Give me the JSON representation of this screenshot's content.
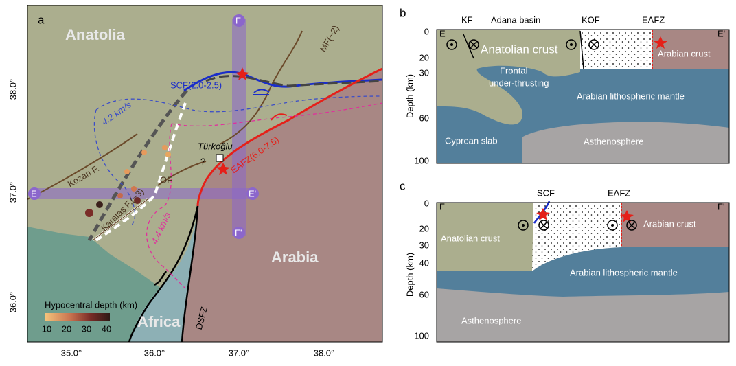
{
  "panel_a": {
    "label": "a",
    "regions": [
      "Anatolia",
      "Arabia",
      "Africa"
    ],
    "faults": {
      "scf": "SCF(2.0-2.5)",
      "eafz": "EAFZ(6.0-7.5)",
      "kozan": "Kozan F.",
      "of": "OF",
      "karatas": "Karataş F.(~3)",
      "mf": "MF(~2)",
      "dsfz": "DSFZ"
    },
    "town": "Türkoğlu",
    "question": "?",
    "velocity": [
      "4.2 km/s",
      "4.4 km/s"
    ],
    "profile_ends": [
      "F",
      "F'",
      "E",
      "E'"
    ],
    "colorbar": {
      "title": "Hypocentral depth (km)",
      "ticks": [
        "10",
        "20",
        "30",
        "40"
      ]
    },
    "xticks": [
      "35.0°",
      "36.0°",
      "37.0°",
      "38.0°"
    ],
    "yticks": [
      "38.0°",
      "37.0°",
      "36.0°"
    ]
  },
  "panel_b": {
    "label": "b",
    "top_labels": [
      "KF",
      "Adana basin",
      "KOF",
      "EAFZ"
    ],
    "ends": [
      "E",
      "E'"
    ],
    "axis_label": "Depth (km)",
    "ticks": [
      "0",
      "20",
      "30",
      "60",
      "100"
    ],
    "layers": {
      "anatolian_crust": "Anatolian crust",
      "arabian_crust": "Arabian crust",
      "frontal": [
        "Frontal",
        "under-thrusting"
      ],
      "mantle": "Arabian lithospheric mantle",
      "slab": "Cyprean slab",
      "asthenosphere": "Asthenosphere"
    }
  },
  "panel_c": {
    "label": "c",
    "top_labels": [
      "SCF",
      "EAFZ"
    ],
    "ends": [
      "F",
      "F'"
    ],
    "axis_label": "Depth (km)",
    "ticks": [
      "0",
      "20",
      "30",
      "40",
      "60",
      "100"
    ],
    "layers": {
      "anatolian_crust": "Anatolian crust",
      "arabian_crust": "Arabian crust",
      "mantle": "Arabian lithospheric mantle",
      "asthenosphere": "Asthenosphere"
    }
  }
}
